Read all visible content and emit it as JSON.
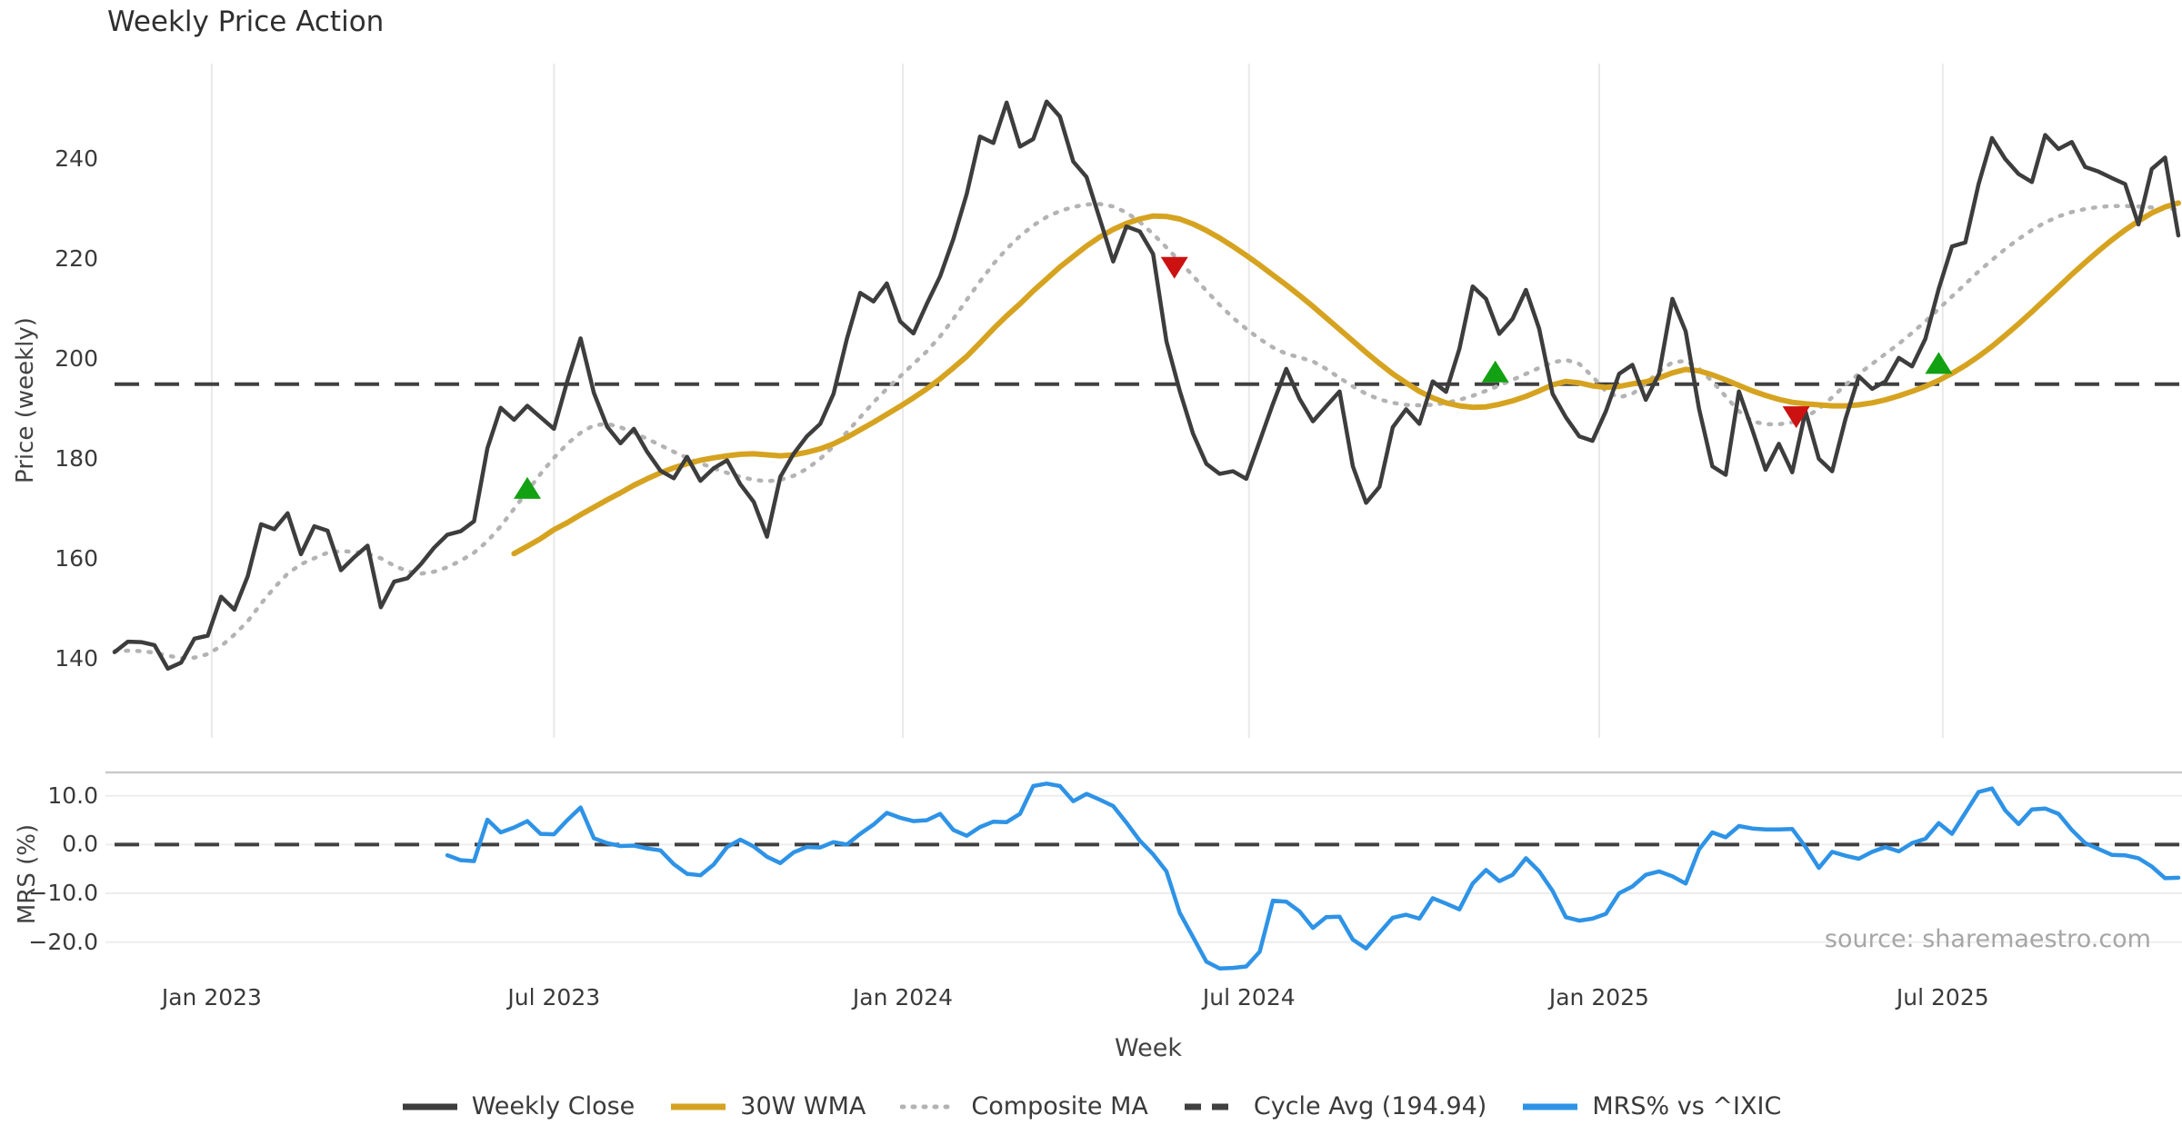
{
  "title": "Weekly Price Action",
  "source_note": "source: sharemaestro.com",
  "legend": {
    "items": [
      {
        "label": "Weekly Close",
        "color": "#3d3d3d",
        "style": "solid"
      },
      {
        "label": "30W WMA",
        "color": "#d6a320",
        "style": "solid"
      },
      {
        "label": "Composite MA",
        "color": "#b3b3b3",
        "style": "dotted"
      },
      {
        "label": "Cycle Avg (194.94)",
        "color": "#404040",
        "style": "dashed"
      },
      {
        "label": "MRS% vs ^IXIC",
        "color": "#2e93e6",
        "style": "solid"
      }
    ]
  },
  "chart_data": {
    "type": "line",
    "title": "Weekly Price Action",
    "xlabel": "Week",
    "x_ticks": {
      "labels": [
        "Jan 2023",
        "Jul 2023",
        "Jan 2024",
        "Jul 2024",
        "Jan 2025",
        "Jul 2025"
      ],
      "weeks": [
        7.3,
        33.0,
        59.2,
        85.2,
        111.5,
        137.3
      ]
    },
    "total_weeks": 156,
    "price_panel": {
      "ylabel": "Price (weekly)",
      "ylim": [
        124.5,
        259.1
      ],
      "yticks": [
        140,
        160,
        180,
        200,
        220,
        240
      ],
      "cycle_avg": 194.94,
      "grid": "vertical",
      "series": {
        "weekly_close": {
          "name": "Weekly Close",
          "start_week": 0,
          "values": [
            141.3,
            143.4,
            143.3,
            142.7,
            138.0,
            139.2,
            144.0,
            144.6,
            152.4,
            149.8,
            156.5,
            166.9,
            165.9,
            169.1,
            160.9,
            166.5,
            165.6,
            157.7,
            160.3,
            162.6,
            150.3,
            155.4,
            156.1,
            158.9,
            162.2,
            164.8,
            165.5,
            167.5,
            182.1,
            190.2,
            187.8,
            190.6,
            188.3,
            186.0,
            195.5,
            204.1,
            193.2,
            186.4,
            183.1,
            186.0,
            181.4,
            177.6,
            176.1,
            180.4,
            175.6,
            178.1,
            179.7,
            174.9,
            171.4,
            164.4,
            176.4,
            181.0,
            184.5,
            187.0,
            193.0,
            204.0,
            213.2,
            211.5,
            215.1,
            207.5,
            205.1,
            211.0,
            216.5,
            224.0,
            233.0,
            244.5,
            243.2,
            251.3,
            242.5,
            244.0,
            251.5,
            248.5,
            239.5,
            236.4,
            228.0,
            219.5,
            226.5,
            225.5,
            221.0,
            203.5,
            193.6,
            185.0,
            179.0,
            177.0,
            177.5,
            176.0,
            183.5,
            191.0,
            198.0,
            192.0,
            187.5,
            190.5,
            193.5,
            178.5,
            171.2,
            174.4,
            186.3,
            189.9,
            187.0,
            195.5,
            193.4,
            202.0,
            214.5,
            212.0,
            205.0,
            208.0,
            213.8,
            206.0,
            193.0,
            188.3,
            184.5,
            183.6,
            189.5,
            197.0,
            198.8,
            191.8,
            197.0,
            212.0,
            205.5,
            190.0,
            178.5,
            176.8,
            193.5,
            185.8,
            177.8,
            183.0,
            177.3,
            189.5,
            180.0,
            177.5,
            188.0,
            196.5,
            194.0,
            195.5,
            200.2,
            198.5,
            204.0,
            214.0,
            222.5,
            223.3,
            235.0,
            244.2,
            240.0,
            237.0,
            235.4,
            244.8,
            242.0,
            243.4,
            238.4,
            237.5,
            236.2,
            235.0,
            226.9,
            238.0,
            240.3,
            224.7
          ]
        },
        "wma_30w": {
          "name": "30W WMA",
          "start_week": 30,
          "values": [
            161.0,
            162.5,
            164.0,
            165.8,
            167.2,
            168.8,
            170.3,
            171.8,
            173.2,
            174.7,
            176.0,
            177.2,
            178.2,
            179.0,
            179.7,
            180.2,
            180.6,
            180.9,
            181.0,
            180.8,
            180.6,
            180.8,
            181.3,
            182.0,
            183.0,
            184.3,
            185.8,
            187.3,
            188.9,
            190.5,
            192.2,
            194.0,
            196.0,
            198.2,
            200.5,
            203.2,
            206.0,
            208.6,
            211.0,
            213.6,
            216.0,
            218.4,
            220.5,
            222.6,
            224.4,
            225.9,
            227.1,
            228.0,
            228.6,
            228.5,
            228.0,
            227.0,
            225.7,
            224.2,
            222.5,
            220.7,
            218.8,
            216.8,
            214.8,
            212.7,
            210.5,
            208.2,
            205.9,
            203.6,
            201.3,
            199.1,
            197.0,
            195.2,
            193.5,
            192.2,
            191.2,
            190.6,
            190.3,
            190.4,
            190.9,
            191.6,
            192.5,
            193.6,
            194.8,
            195.5,
            195.2,
            194.6,
            194.3,
            194.5,
            195.0,
            195.4,
            196.2,
            197.2,
            197.9,
            197.6,
            196.8,
            195.8,
            194.7,
            193.6,
            192.7,
            191.9,
            191.3,
            191.0,
            190.8,
            190.6,
            190.6,
            190.8,
            191.2,
            191.8,
            192.6,
            193.5,
            194.5,
            195.7,
            197.1,
            198.7,
            200.5,
            202.5,
            204.7,
            207.0,
            209.4,
            211.9,
            214.4,
            216.9,
            219.3,
            221.6,
            223.8,
            225.8,
            227.6,
            229.2,
            230.4,
            231.2
          ]
        },
        "composite_ma": {
          "name": "Composite MA",
          "start_week": 0,
          "values": [
            141.5,
            141.6,
            141.5,
            141.2,
            140.6,
            140.1,
            140.2,
            140.9,
            142.5,
            144.8,
            147.5,
            151.0,
            154.2,
            157.0,
            158.9,
            160.1,
            161.2,
            161.5,
            161.4,
            161.0,
            160.1,
            158.6,
            157.5,
            157.0,
            157.4,
            158.3,
            159.6,
            161.2,
            163.5,
            166.5,
            170.0,
            173.5,
            177.0,
            180.2,
            183.0,
            185.2,
            186.7,
            187.0,
            186.3,
            185.2,
            184.0,
            182.7,
            181.4,
            180.2,
            179.1,
            178.1,
            177.2,
            176.4,
            175.8,
            175.5,
            175.8,
            176.6,
            178.0,
            180.0,
            182.5,
            185.3,
            188.3,
            191.3,
            194.0,
            196.5,
            199.0,
            201.5,
            204.5,
            208.0,
            211.8,
            215.5,
            219.0,
            222.0,
            224.6,
            226.7,
            228.4,
            229.6,
            230.4,
            230.9,
            231.0,
            230.5,
            229.3,
            227.4,
            225.0,
            222.3,
            219.5,
            216.6,
            213.6,
            210.8,
            208.2,
            206.0,
            204.0,
            202.3,
            201.0,
            200.3,
            199.5,
            198.0,
            196.2,
            194.5,
            193.0,
            191.9,
            191.2,
            190.8,
            190.7,
            190.8,
            191.2,
            191.8,
            192.6,
            193.6,
            194.7,
            195.8,
            197.0,
            198.2,
            199.3,
            199.8,
            199.0,
            196.5,
            193.5,
            192.3,
            193.0,
            195.0,
            197.5,
            199.3,
            199.6,
            198.0,
            195.5,
            192.5,
            189.5,
            187.5,
            186.9,
            186.9,
            187.3,
            188.3,
            190.0,
            192.3,
            194.8,
            197.0,
            199.0,
            201.0,
            203.0,
            205.2,
            207.5,
            210.0,
            212.5,
            215.0,
            217.5,
            219.8,
            222.0,
            224.0,
            225.8,
            227.3,
            228.5,
            229.4,
            230.0,
            230.4,
            230.6,
            230.6,
            230.5,
            230.3,
            230.1,
            229.9
          ]
        }
      },
      "markers": {
        "buy_green_up": [
          {
            "week": 31.0,
            "value": 174.0
          },
          {
            "week": 103.7,
            "value": 197.3
          },
          {
            "week": 137.0,
            "value": 199.0
          }
        ],
        "sell_red_down": [
          {
            "week": 79.6,
            "value": 218.4
          },
          {
            "week": 126.3,
            "value": 188.5
          }
        ]
      }
    },
    "mrs_panel": {
      "ylabel": "MRS (%)",
      "ylim": [
        -27.7,
        14.8
      ],
      "yticks": [
        10.0,
        0.0,
        -10.0,
        -20.0
      ],
      "ytick_labels": [
        "10.0",
        "0.0",
        "−10.0",
        "−20.0"
      ],
      "zero_line": 0.0,
      "grid": "horizontal",
      "series": {
        "mrs_vs_ixic": {
          "name": "MRS% vs ^IXIC",
          "start_week": 25,
          "values": [
            -2.2,
            -3.2,
            -3.4,
            5.1,
            2.5,
            3.5,
            4.8,
            2.2,
            2.1,
            5.0,
            7.6,
            1.3,
            0.3,
            -0.3,
            -0.2,
            -0.8,
            -1.2,
            -4.0,
            -6.0,
            -6.3,
            -4.1,
            -0.5,
            1.0,
            -0.4,
            -2.5,
            -3.8,
            -1.6,
            -0.5,
            -0.6,
            0.5,
            0.0,
            2.2,
            4.1,
            6.5,
            5.5,
            4.8,
            5.0,
            6.3,
            3.0,
            1.8,
            3.6,
            4.7,
            4.6,
            6.3,
            12.0,
            12.5,
            12.0,
            8.9,
            10.4,
            9.2,
            7.9,
            4.5,
            0.8,
            -2.0,
            -5.5,
            -14.0,
            -19.0,
            -24.0,
            -25.4,
            -25.3,
            -25.0,
            -22.0,
            -11.5,
            -11.7,
            -13.7,
            -17.1,
            -14.9,
            -14.8,
            -19.5,
            -21.3,
            -18.1,
            -15.0,
            -14.4,
            -15.2,
            -11.0,
            -12.1,
            -13.3,
            -8.0,
            -5.2,
            -7.5,
            -6.2,
            -2.8,
            -5.5,
            -9.5,
            -14.9,
            -15.6,
            -15.2,
            -14.2,
            -10.0,
            -8.6,
            -6.2,
            -5.5,
            -6.5,
            -8.0,
            -1.0,
            2.5,
            1.5,
            3.8,
            3.3,
            3.1,
            3.1,
            3.2,
            -0.5,
            -4.8,
            -1.5,
            -2.3,
            -2.9,
            -1.5,
            -0.5,
            -1.4,
            0.3,
            1.2,
            4.4,
            2.2,
            6.5,
            10.8,
            11.5,
            7.0,
            4.2,
            7.2,
            7.4,
            6.3,
            3.0,
            0.3,
            -0.9,
            -2.1,
            -2.2,
            -2.8,
            -4.5,
            -6.9,
            -6.8
          ]
        }
      }
    },
    "colors": {
      "weekly_close": "#3d3d3d",
      "wma_30w": "#d6a320",
      "composite_ma": "#b3b3b3",
      "cycle_avg": "#404040",
      "mrs": "#2e93e6",
      "buy_marker": "#12a112",
      "sell_marker": "#cc1111",
      "grid": "#e9e9e9",
      "panel_border": "#c9c9c9"
    }
  }
}
